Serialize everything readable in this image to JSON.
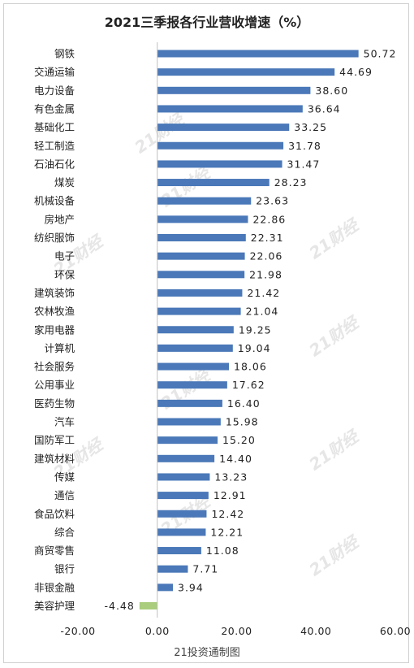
{
  "chart_data": {
    "type": "bar",
    "orientation": "horizontal",
    "title": "2021三季报各行业营收增速（%）",
    "categories": [
      "钢铁",
      "交通运输",
      "电力设备",
      "有色金属",
      "基础化工",
      "轻工制造",
      "石油石化",
      "煤炭",
      "机械设备",
      "房地产",
      "纺织服饰",
      "电子",
      "环保",
      "建筑装饰",
      "农林牧渔",
      "家用电器",
      "计算机",
      "社会服务",
      "公用事业",
      "医药生物",
      "汽车",
      "国防军工",
      "建筑材料",
      "传媒",
      "通信",
      "食品饮料",
      "综合",
      "商贸零售",
      "银行",
      "非银金融",
      "美容护理"
    ],
    "values": [
      50.72,
      44.69,
      38.6,
      36.64,
      33.25,
      31.78,
      31.47,
      28.23,
      23.63,
      22.86,
      22.31,
      22.06,
      21.98,
      21.42,
      21.04,
      19.25,
      19.04,
      18.06,
      17.62,
      16.4,
      15.98,
      15.2,
      14.4,
      13.23,
      12.91,
      12.42,
      12.21,
      11.08,
      7.71,
      3.94,
      -4.48
    ],
    "value_labels": [
      "50.72",
      "44.69",
      "38.60",
      "36.64",
      "33.25",
      "31.78",
      "31.47",
      "28.23",
      "23.63",
      "22.86",
      "22.31",
      "22.06",
      "21.98",
      "21.42",
      "21.04",
      "19.25",
      "19.04",
      "18.06",
      "17.62",
      "16.40",
      "15.98",
      "15.20",
      "14.40",
      "13.23",
      "12.91",
      "12.42",
      "12.21",
      "11.08",
      "7.71",
      "3.94",
      "-4.48"
    ],
    "xlim": [
      -20,
      60
    ],
    "xticks": [
      -20,
      0,
      20,
      40,
      60
    ],
    "xtick_labels": [
      "-20.00",
      "0.00",
      "20.00",
      "40.00",
      "60.00"
    ],
    "grid": false,
    "legend": "none",
    "colors": {
      "positive": "#4a78b8",
      "negative": "#a9cc7d",
      "axis": "#bfbfbf"
    }
  },
  "footer": "21投资通制图",
  "watermark": "21财经"
}
